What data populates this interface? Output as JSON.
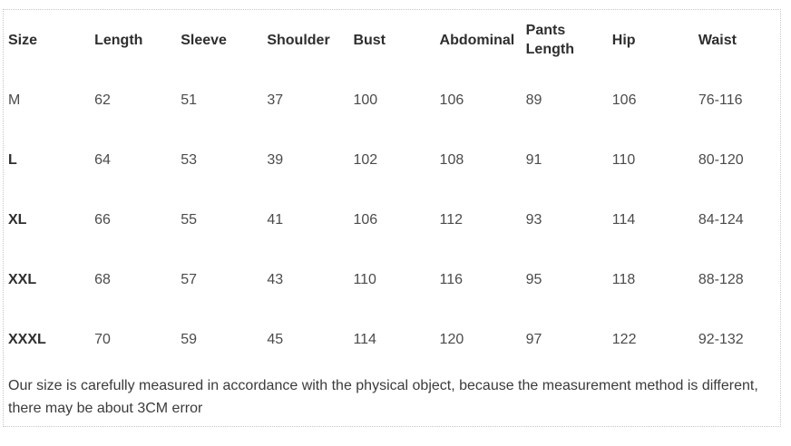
{
  "chart_data": {
    "type": "table",
    "columns": [
      "Size",
      "Length",
      "Sleeve",
      "Shoulder",
      "Bust",
      "Abdominal",
      "Pants\nLength",
      "Hip",
      "Waist"
    ],
    "rows": [
      {
        "cells": [
          "M",
          "62",
          "51",
          "37",
          "100",
          "106",
          "89",
          "106",
          "76-116"
        ]
      },
      {
        "cells": [
          "L",
          "64",
          "53",
          "39",
          "102",
          "108",
          "91",
          "110",
          "80-120"
        ]
      },
      {
        "cells": [
          "XL",
          "66",
          "55",
          "41",
          "106",
          "112",
          "93",
          "114",
          "84-124"
        ]
      },
      {
        "cells": [
          "XXL",
          "68",
          "57",
          "43",
          "110",
          "116",
          "95",
          "118",
          "88-128"
        ]
      },
      {
        "cells": [
          "XXXL",
          "70",
          "59",
          "45",
          "114",
          "120",
          "97",
          "122",
          "92-132"
        ]
      }
    ],
    "note": "Our size is carefully measured in accordance with the physical object, because the measurement method is different, there may be about 3CM error"
  },
  "colors": {
    "header_text": "#2e2e2e",
    "body_text": "#4b4b4b",
    "note_text": "#3b3b3b",
    "border": "#c6c6c6",
    "background": "#ffffff"
  }
}
